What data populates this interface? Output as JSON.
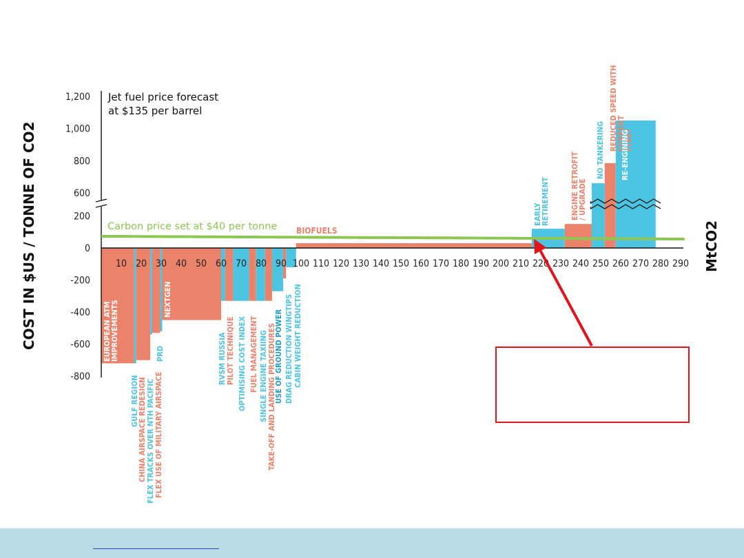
{
  "colors": {
    "salmon": "#eb836a",
    "cyan": "#4cc5e3",
    "carbon_line": "#8dc652",
    "axis": "#111111",
    "callout_red": "#e0141b",
    "footer_band": "#b9dde6"
  },
  "chart_data": {
    "type": "bar",
    "subtype": "marginal abatement cost curve (variable-width bars)",
    "ylabel": "COST IN $US / TONNE OF CO2",
    "xlabel": "MtCO2",
    "x_ticks": [
      10,
      20,
      30,
      40,
      50,
      60,
      70,
      80,
      90,
      100,
      110,
      120,
      130,
      140,
      150,
      160,
      170,
      180,
      190,
      200,
      210,
      220,
      230,
      240,
      250,
      260,
      270,
      280,
      290
    ],
    "y_ticks_lower": [
      200,
      0,
      -200,
      -400,
      -600,
      -800
    ],
    "y_ticks_upper": [
      600,
      800,
      1000,
      1200
    ],
    "xlim": [
      0,
      290
    ],
    "ylim_lower": [
      -800,
      200
    ],
    "ylim_upper": [
      600,
      1200
    ],
    "y_axis_break": "between 200 and 600",
    "forecast_note": [
      "Jet fuel price forecast",
      "at $135 per barrel"
    ],
    "carbon_price": {
      "label": "Carbon price set at $40 per tonne",
      "value": 40
    },
    "series": [
      {
        "label": "EUROPEAN ATM IMPROVEMENTS",
        "start": 0,
        "end": 16.5,
        "value": -720,
        "color": "salmon"
      },
      {
        "label": "GULF REGION",
        "start": 16.5,
        "end": 17.5,
        "value": -720,
        "color": "cyan"
      },
      {
        "label": "CHINA AIRSPACE REDESIGN",
        "start": 17.5,
        "end": 24.5,
        "value": -700,
        "color": "salmon"
      },
      {
        "label": "FLEX TRACKS OVER NTH PACIFIC",
        "start": 24.5,
        "end": 25.5,
        "value": -540,
        "color": "cyan"
      },
      {
        "label": "FLEX USE OF MILITARY AIRSPACE",
        "start": 25.5,
        "end": 29.5,
        "value": -530,
        "color": "salmon"
      },
      {
        "label": "PRD",
        "start": 29.5,
        "end": 30.5,
        "value": -520,
        "color": "cyan"
      },
      {
        "label": "NEXTGEN",
        "start": 30.5,
        "end": 60,
        "value": -450,
        "color": "salmon"
      },
      {
        "label": "RVSM RUSSIA",
        "start": 60,
        "end": 62,
        "value": -330,
        "color": "cyan"
      },
      {
        "label": "PILOT TECHNIQUE",
        "start": 62,
        "end": 66,
        "value": -330,
        "color": "salmon"
      },
      {
        "label": "OPTIMISING COST INDEX",
        "start": 66,
        "end": 74,
        "value": -330,
        "color": "cyan"
      },
      {
        "label": "FUEL MANAGEMENT",
        "start": 74,
        "end": 77.5,
        "value": -330,
        "color": "salmon"
      },
      {
        "label": "SINGLE ENGINE TAXIING",
        "start": 77.5,
        "end": 82,
        "value": -330,
        "color": "cyan"
      },
      {
        "label": "TAKE-OFF AND LANDING PROCEDURES",
        "start": 82,
        "end": 85.5,
        "value": -330,
        "color": "salmon"
      },
      {
        "label": "USE OF GROUND POWER",
        "start": 85.5,
        "end": 91,
        "value": -270,
        "color": "cyan"
      },
      {
        "label": "DRAG REDUCTION WINGTIPS",
        "start": 91,
        "end": 92.5,
        "value": -190,
        "color": "salmon"
      },
      {
        "label": "CABIN WEIGHT REDUCTION",
        "start": 92.5,
        "end": 97.5,
        "value": -120,
        "color": "cyan"
      },
      {
        "label": "BIOFUELS",
        "start": 97.5,
        "end": 215.5,
        "value": 30,
        "color": "salmon"
      },
      {
        "label": "EARLY RETIREMENT",
        "start": 215.5,
        "end": 232,
        "value": 120,
        "color": "cyan"
      },
      {
        "label": "ENGINE RETROFIT / UPGRADE",
        "start": 232,
        "end": 245.5,
        "value": 150,
        "color": "salmon"
      },
      {
        "label": "NO TANKERING",
        "start": 245.5,
        "end": 252,
        "value": 660,
        "color": "cyan"
      },
      {
        "label": "REDUCED SPEED WITH CURRENT FLEET",
        "start": 252,
        "end": 257.5,
        "value": 785,
        "color": "salmon"
      },
      {
        "label": "RE-ENGINING",
        "start": 257.5,
        "end": 277.5,
        "value": 1050,
        "color": "cyan"
      }
    ]
  }
}
